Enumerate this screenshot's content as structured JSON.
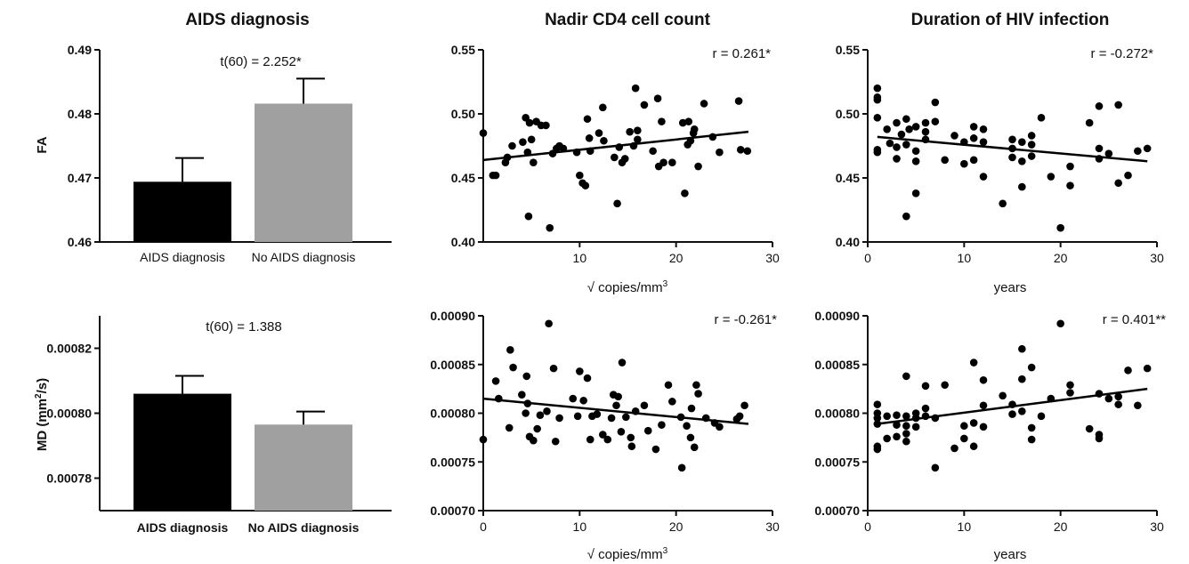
{
  "column_titles": [
    "AIDS diagnosis",
    "Nadir CD4 cell count",
    "Duration of HIV infection"
  ],
  "row_labels": {
    "fa": "FA",
    "md_prefix": "MD (mm",
    "md_sup": "2",
    "md_suffix": "/s)"
  },
  "x_labels": {
    "cd4_top": "√ copies/mm",
    "cd4_top_sup": "3",
    "cd4_bottom": "√ copies/mm",
    "cd4_bottom_sup": "3",
    "dur_top": "years",
    "dur_bottom": "years"
  },
  "colors": {
    "aids_bar": "#000000",
    "no_aids_bar": "#a0a0a0",
    "points": "#000000"
  },
  "chart_data": [
    {
      "type": "bar",
      "categories": [
        "AIDS diagnosis",
        "No AIDS diagnosis"
      ],
      "values": [
        0.4694,
        0.4816
      ],
      "errors": [
        0.0037,
        0.0039
      ],
      "ylabel": "FA",
      "ylim": [
        0.46,
        0.49
      ],
      "yticks": [
        "0.46",
        "0.47",
        "0.48",
        "0.49"
      ],
      "annotation": "t(60) = 2.252*"
    },
    {
      "type": "scatter",
      "xlabel": "√ copies/mm3",
      "ylabel": "FA",
      "xlim": [
        0,
        30
      ],
      "ylim": [
        0.4,
        0.55
      ],
      "xticks": [
        "10",
        "20",
        "30"
      ],
      "yticks": [
        "0.40",
        "0.45",
        "0.50",
        "0.55"
      ],
      "annotation": "r = 0.261*",
      "fit": [
        [
          0,
          0.464
        ],
        [
          27.5,
          0.486
        ]
      ],
      "points": [
        [
          0,
          0.485
        ],
        [
          1,
          0.452
        ],
        [
          1.3,
          0.452
        ],
        [
          2.3,
          0.462
        ],
        [
          2.5,
          0.466
        ],
        [
          3,
          0.475
        ],
        [
          4.1,
          0.478
        ],
        [
          4.4,
          0.497
        ],
        [
          4.6,
          0.47
        ],
        [
          4.7,
          0.42
        ],
        [
          4.8,
          0.493
        ],
        [
          5,
          0.48
        ],
        [
          5.2,
          0.462
        ],
        [
          5.5,
          0.494
        ],
        [
          6,
          0.491
        ],
        [
          6.5,
          0.491
        ],
        [
          6.9,
          0.411
        ],
        [
          7.2,
          0.469
        ],
        [
          7.6,
          0.473
        ],
        [
          7.9,
          0.475
        ],
        [
          8.3,
          0.473
        ],
        [
          9.7,
          0.47
        ],
        [
          10,
          0.452
        ],
        [
          10.3,
          0.446
        ],
        [
          10.6,
          0.444
        ],
        [
          10.8,
          0.496
        ],
        [
          11,
          0.481
        ],
        [
          11.1,
          0.471
        ],
        [
          12,
          0.485
        ],
        [
          12.4,
          0.505
        ],
        [
          12.5,
          0.479
        ],
        [
          13.6,
          0.466
        ],
        [
          13.9,
          0.43
        ],
        [
          14.1,
          0.474
        ],
        [
          14.4,
          0.462
        ],
        [
          14.7,
          0.465
        ],
        [
          15.2,
          0.486
        ],
        [
          15.6,
          0.475
        ],
        [
          15.8,
          0.52
        ],
        [
          16,
          0.48
        ],
        [
          16,
          0.487
        ],
        [
          16.7,
          0.507
        ],
        [
          17.6,
          0.471
        ],
        [
          18.1,
          0.512
        ],
        [
          18.2,
          0.459
        ],
        [
          18.5,
          0.494
        ],
        [
          18.7,
          0.462
        ],
        [
          19.6,
          0.462
        ],
        [
          20.7,
          0.493
        ],
        [
          20.9,
          0.438
        ],
        [
          21.2,
          0.476
        ],
        [
          21.3,
          0.494
        ],
        [
          21.5,
          0.479
        ],
        [
          21.8,
          0.485
        ],
        [
          21.9,
          0.488
        ],
        [
          22.3,
          0.459
        ],
        [
          22.9,
          0.508
        ],
        [
          23.8,
          0.482
        ],
        [
          24.5,
          0.47
        ],
        [
          26.5,
          0.51
        ],
        [
          26.7,
          0.472
        ],
        [
          27.4,
          0.471
        ]
      ]
    },
    {
      "type": "scatter",
      "xlabel": "years",
      "ylabel": "FA",
      "xlim": [
        0,
        30
      ],
      "ylim": [
        0.4,
        0.55
      ],
      "xticks": [
        "0",
        "10",
        "20",
        "30"
      ],
      "yticks": [
        "0.40",
        "0.45",
        "0.50",
        "0.55"
      ],
      "annotation": "r = -0.272*",
      "fit": [
        [
          1,
          0.482
        ],
        [
          29,
          0.463
        ]
      ],
      "points": [
        [
          1,
          0.52
        ],
        [
          1,
          0.513
        ],
        [
          1,
          0.511
        ],
        [
          1,
          0.497
        ],
        [
          1,
          0.472
        ],
        [
          1,
          0.47
        ],
        [
          2,
          0.488
        ],
        [
          2.3,
          0.477
        ],
        [
          3,
          0.493
        ],
        [
          3,
          0.474
        ],
        [
          3,
          0.465
        ],
        [
          3.5,
          0.484
        ],
        [
          4,
          0.496
        ],
        [
          4,
          0.476
        ],
        [
          4,
          0.42
        ],
        [
          4.3,
          0.488
        ],
        [
          5,
          0.49
        ],
        [
          5,
          0.471
        ],
        [
          5,
          0.463
        ],
        [
          5,
          0.438
        ],
        [
          6,
          0.493
        ],
        [
          6,
          0.48
        ],
        [
          6,
          0.486
        ],
        [
          7,
          0.509
        ],
        [
          7,
          0.494
        ],
        [
          8,
          0.464
        ],
        [
          9,
          0.483
        ],
        [
          10,
          0.478
        ],
        [
          10,
          0.461
        ],
        [
          11,
          0.49
        ],
        [
          11,
          0.481
        ],
        [
          11,
          0.464
        ],
        [
          12,
          0.488
        ],
        [
          12,
          0.478
        ],
        [
          12,
          0.451
        ],
        [
          14,
          0.43
        ],
        [
          15,
          0.48
        ],
        [
          15,
          0.473
        ],
        [
          15,
          0.466
        ],
        [
          16,
          0.478
        ],
        [
          16,
          0.463
        ],
        [
          16,
          0.443
        ],
        [
          17,
          0.483
        ],
        [
          17,
          0.476
        ],
        [
          17,
          0.467
        ],
        [
          18,
          0.497
        ],
        [
          19,
          0.451
        ],
        [
          20,
          0.411
        ],
        [
          21,
          0.459
        ],
        [
          21,
          0.444
        ],
        [
          23,
          0.493
        ],
        [
          24,
          0.506
        ],
        [
          24,
          0.473
        ],
        [
          24,
          0.465
        ],
        [
          25,
          0.469
        ],
        [
          26,
          0.507
        ],
        [
          26,
          0.446
        ],
        [
          27,
          0.452
        ],
        [
          28,
          0.471
        ],
        [
          29,
          0.473
        ]
      ]
    },
    {
      "type": "bar",
      "categories": [
        "AIDS diagnosis",
        "No AIDS diagnosis"
      ],
      "values": [
        0.000806,
        0.0007965
      ],
      "errors": [
        5.5e-06,
        4e-06
      ],
      "ylabel": "MD (mm2/s)",
      "ylim": [
        0.00077,
        0.00083
      ],
      "yticks": [
        "0.00078",
        "0.00080",
        "0.00082"
      ],
      "annotation": "t(60) = 1.388"
    },
    {
      "type": "scatter",
      "xlabel": "√ copies/mm3",
      "ylabel": "MD (mm2/s)",
      "xlim": [
        0,
        30
      ],
      "ylim": [
        0.0007,
        0.0009
      ],
      "xticks": [
        "0",
        "10",
        "20",
        "30"
      ],
      "yticks": [
        "0.00070",
        "0.00075",
        "0.00080",
        "0.00085",
        "0.00090"
      ],
      "annotation": "r = -0.261*",
      "fit": [
        [
          0,
          0.000815
        ],
        [
          27.5,
          0.000789
        ]
      ],
      "points": [
        [
          0,
          0.000773
        ],
        [
          1.3,
          0.000833
        ],
        [
          1.6,
          0.000815
        ],
        [
          2.7,
          0.000785
        ],
        [
          2.8,
          0.000865
        ],
        [
          3.1,
          0.000847
        ],
        [
          4,
          0.000819
        ],
        [
          4.4,
          0.0008
        ],
        [
          4.5,
          0.000838
        ],
        [
          4.6,
          0.00081
        ],
        [
          4.8,
          0.000776
        ],
        [
          5.2,
          0.000772
        ],
        [
          5.6,
          0.000784
        ],
        [
          5.9,
          0.000798
        ],
        [
          6.6,
          0.000802
        ],
        [
          6.8,
          0.000892
        ],
        [
          7.3,
          0.000846
        ],
        [
          7.5,
          0.000771
        ],
        [
          7.9,
          0.000795
        ],
        [
          9.3,
          0.000815
        ],
        [
          9.8,
          0.000797
        ],
        [
          10,
          0.000843
        ],
        [
          10.4,
          0.000813
        ],
        [
          10.8,
          0.000836
        ],
        [
          11.1,
          0.000773
        ],
        [
          11.3,
          0.000797
        ],
        [
          11.8,
          0.000799
        ],
        [
          12.4,
          0.000778
        ],
        [
          12.9,
          0.000773
        ],
        [
          13.3,
          0.000795
        ],
        [
          13.5,
          0.000819
        ],
        [
          13.8,
          0.000808
        ],
        [
          14,
          0.000817
        ],
        [
          14.3,
          0.000781
        ],
        [
          14.4,
          0.000852
        ],
        [
          14.8,
          0.000796
        ],
        [
          15.3,
          0.000775
        ],
        [
          15.4,
          0.000766
        ],
        [
          15.8,
          0.000802
        ],
        [
          16.7,
          0.000808
        ],
        [
          17.1,
          0.000782
        ],
        [
          17.9,
          0.000763
        ],
        [
          18.5,
          0.000788
        ],
        [
          19.2,
          0.000829
        ],
        [
          19.6,
          0.000812
        ],
        [
          20.5,
          0.000796
        ],
        [
          20.6,
          0.000744
        ],
        [
          21.1,
          0.000787
        ],
        [
          21.5,
          0.000775
        ],
        [
          21.6,
          0.000805
        ],
        [
          21.9,
          0.000765
        ],
        [
          22.1,
          0.000829
        ],
        [
          22.3,
          0.00082
        ],
        [
          23.1,
          0.000795
        ],
        [
          24,
          0.00079
        ],
        [
          24.5,
          0.000786
        ],
        [
          26.3,
          0.000794
        ],
        [
          26.6,
          0.000797
        ],
        [
          27.1,
          0.000808
        ]
      ]
    },
    {
      "type": "scatter",
      "xlabel": "years",
      "ylabel": "MD (mm2/s)",
      "xlim": [
        0,
        30
      ],
      "ylim": [
        0.0007,
        0.0009
      ],
      "xticks": [
        "0",
        "10",
        "20",
        "30"
      ],
      "yticks": [
        "0.00070",
        "0.00075",
        "0.00080",
        "0.00085",
        "0.00090"
      ],
      "annotation": "r = 0.401**",
      "fit": [
        [
          1,
          0.000789
        ],
        [
          29,
          0.000825
        ]
      ],
      "points": [
        [
          1,
          0.000809
        ],
        [
          1,
          0.0008
        ],
        [
          1,
          0.000795
        ],
        [
          1,
          0.000789
        ],
        [
          1,
          0.000766
        ],
        [
          1,
          0.000763
        ],
        [
          2,
          0.000797
        ],
        [
          2,
          0.000774
        ],
        [
          3,
          0.000798
        ],
        [
          3,
          0.000788
        ],
        [
          3,
          0.000776
        ],
        [
          4,
          0.000838
        ],
        [
          4,
          0.000797
        ],
        [
          4,
          0.000787
        ],
        [
          4,
          0.000779
        ],
        [
          4,
          0.000771
        ],
        [
          5,
          0.0008
        ],
        [
          5,
          0.000795
        ],
        [
          5,
          0.000786
        ],
        [
          6,
          0.000828
        ],
        [
          6,
          0.000805
        ],
        [
          6,
          0.000797
        ],
        [
          7,
          0.000744
        ],
        [
          7,
          0.000795
        ],
        [
          8,
          0.000829
        ],
        [
          9,
          0.000764
        ],
        [
          10,
          0.000774
        ],
        [
          10,
          0.000787
        ],
        [
          11,
          0.000852
        ],
        [
          11,
          0.000766
        ],
        [
          11,
          0.00079
        ],
        [
          12,
          0.000834
        ],
        [
          12,
          0.000808
        ],
        [
          12,
          0.000786
        ],
        [
          14,
          0.000818
        ],
        [
          15,
          0.000809
        ],
        [
          15,
          0.000799
        ],
        [
          16,
          0.000866
        ],
        [
          16,
          0.000835
        ],
        [
          16,
          0.000802
        ],
        [
          17,
          0.000847
        ],
        [
          17,
          0.000785
        ],
        [
          17,
          0.000773
        ],
        [
          18,
          0.000797
        ],
        [
          19,
          0.000815
        ],
        [
          20,
          0.000892
        ],
        [
          21,
          0.000829
        ],
        [
          21,
          0.000821
        ],
        [
          23,
          0.000784
        ],
        [
          24,
          0.00082
        ],
        [
          24,
          0.000778
        ],
        [
          24,
          0.000774
        ],
        [
          25,
          0.000815
        ],
        [
          26,
          0.000817
        ],
        [
          26,
          0.000809
        ],
        [
          27,
          0.000844
        ],
        [
          28,
          0.000808
        ],
        [
          29,
          0.000846
        ]
      ]
    }
  ]
}
